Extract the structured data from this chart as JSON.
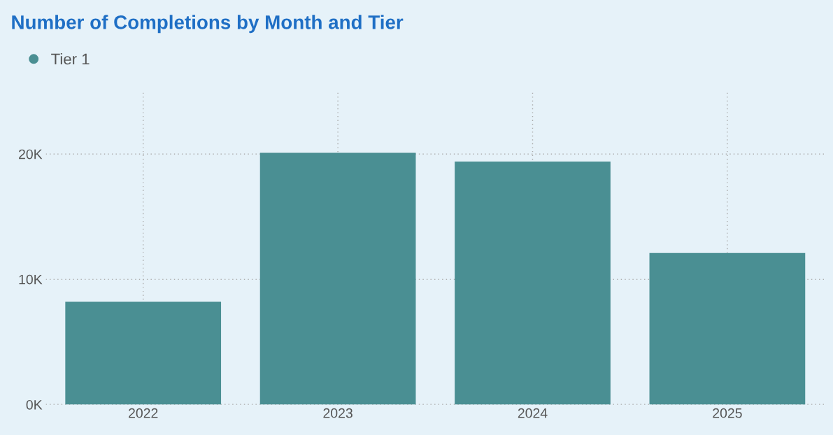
{
  "chart_data": {
    "type": "bar",
    "title": "Number of Completions by Month and Tier",
    "categories": [
      "2022",
      "2023",
      "2024",
      "2025"
    ],
    "series": [
      {
        "name": "Tier 1",
        "color": "#4a8f93",
        "values": [
          8200,
          20100,
          19400,
          12100
        ]
      }
    ],
    "ylim": [
      0,
      25000
    ],
    "yticks": [
      {
        "value": 0,
        "label": "0K"
      },
      {
        "value": 10000,
        "label": "10K"
      },
      {
        "value": 20000,
        "label": "20K"
      }
    ],
    "grid": true,
    "legend": "top left"
  }
}
